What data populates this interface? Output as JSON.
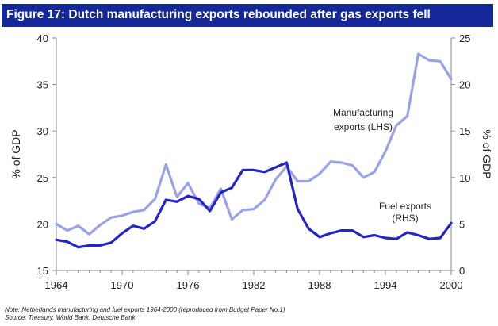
{
  "chart_data": {
    "type": "line",
    "title": "Figure 17: Dutch manufacturing exports rebounded after gas exports fell",
    "x": [
      1964,
      1965,
      1966,
      1967,
      1968,
      1969,
      1970,
      1971,
      1972,
      1973,
      1974,
      1975,
      1976,
      1977,
      1978,
      1979,
      1980,
      1981,
      1982,
      1983,
      1984,
      1985,
      1986,
      1987,
      1988,
      1989,
      1990,
      1991,
      1992,
      1993,
      1994,
      1995,
      1996,
      1997,
      1998,
      1999,
      2000
    ],
    "xlim": [
      1964,
      2000
    ],
    "xticks": [
      1964,
      1970,
      1976,
      1982,
      1988,
      1994,
      2000
    ],
    "ylabel_left": "% of GDP",
    "ylabel_right": "% of GDP",
    "ylim_left": [
      15,
      40
    ],
    "ylim_right": [
      0,
      25
    ],
    "yticks_left": [
      15,
      20,
      25,
      30,
      35,
      40
    ],
    "yticks_right": [
      0,
      5,
      10,
      15,
      20,
      25
    ],
    "series": [
      {
        "name": "Manufacturing exports (LHS)",
        "axis": "left",
        "color": "#9aa2e6",
        "values": [
          20.0,
          19.3,
          19.8,
          18.9,
          19.9,
          20.7,
          20.9,
          21.3,
          21.5,
          22.7,
          26.4,
          22.9,
          24.4,
          22.2,
          21.7,
          23.8,
          20.5,
          21.5,
          21.6,
          22.6,
          24.8,
          26.2,
          24.6,
          24.6,
          25.4,
          26.7,
          26.6,
          26.3,
          25.0,
          25.6,
          27.8,
          30.6,
          31.6,
          38.3,
          37.6,
          37.5,
          35.6
        ]
      },
      {
        "name": "Fuel exports (RHS)",
        "axis": "right",
        "color": "#2424c8",
        "values": [
          3.3,
          3.1,
          2.5,
          2.7,
          2.7,
          3.0,
          4.0,
          4.8,
          4.5,
          5.3,
          7.6,
          7.4,
          8.0,
          7.7,
          6.4,
          8.4,
          8.9,
          10.8,
          10.8,
          10.6,
          11.1,
          11.6,
          6.6,
          4.5,
          3.6,
          4.0,
          4.3,
          4.3,
          3.6,
          3.8,
          3.5,
          3.4,
          4.1,
          3.8,
          3.4,
          3.5,
          5.1
        ]
      }
    ],
    "annotations": {
      "manufacturing_line1": "Manufacturing",
      "manufacturing_line2": "exports (LHS)",
      "fuel_line1": "Fuel exports",
      "fuel_line2": "(RHS)"
    },
    "notes": [
      "Note: Netherlands manufacturing and fuel exports 1964-2000 (reproduced from Budget Paper No.1)",
      "Source: Treasury, World Bank, Deutsche Bank"
    ]
  }
}
